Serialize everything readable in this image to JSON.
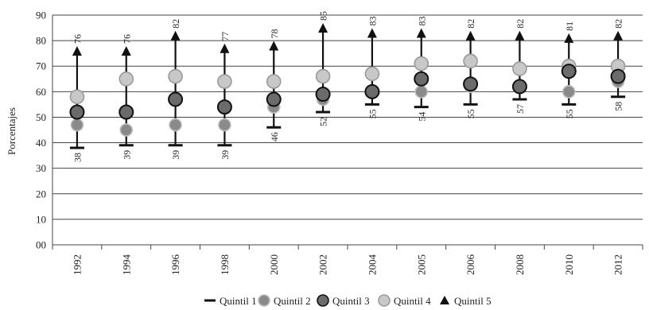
{
  "chart_data": {
    "type": "scatter",
    "title": "",
    "xlabel": "",
    "ylabel": "Porcentajes",
    "ylim": [
      0,
      90
    ],
    "yticks": [
      0,
      10,
      20,
      30,
      40,
      50,
      60,
      70,
      80,
      90
    ],
    "ytick_labels": [
      "00",
      "10",
      "20",
      "30",
      "40",
      "50",
      "60",
      "70",
      "80",
      "90"
    ],
    "grid": true,
    "legend_position": "bottom",
    "categories": [
      "1992",
      "1994",
      "1996",
      "1998",
      "2000",
      "2002",
      "2004",
      "2005",
      "2006",
      "2008",
      "2010",
      "2012"
    ],
    "series": [
      {
        "name": "Quintil 1",
        "marker": "dash",
        "color": "#111111",
        "values": [
          38,
          39,
          39,
          39,
          46,
          52,
          55,
          54,
          55,
          57,
          55,
          58
        ]
      },
      {
        "name": "Quintil 2",
        "marker": "circle",
        "color": "#8a8a8a",
        "values": [
          47,
          45,
          47,
          47,
          54,
          57,
          60,
          60,
          62,
          62,
          60,
          64
        ]
      },
      {
        "name": "Quintil 3",
        "marker": "circle",
        "color": "#6b6b6b",
        "values": [
          52,
          52,
          57,
          54,
          57,
          59,
          60,
          65,
          63,
          62,
          68,
          66
        ]
      },
      {
        "name": "Quintil 4",
        "marker": "circle",
        "color": "#c8c8c8",
        "values": [
          58,
          65,
          66,
          64,
          64,
          66,
          67,
          71,
          72,
          69,
          70,
          70
        ]
      },
      {
        "name": "Quintil 5",
        "marker": "triangle",
        "color": "#111111",
        "values": [
          76,
          76,
          82,
          77,
          78,
          85,
          83,
          83,
          82,
          82,
          81,
          82
        ]
      }
    ],
    "data_labels": {
      "low": {
        "series": "Quintil 1",
        "values": [
          "38",
          "39",
          "39",
          "39",
          "46",
          "52",
          "55",
          "54",
          "55",
          "57",
          "55",
          "58"
        ]
      },
      "high": {
        "series": "Quintil 5",
        "values": [
          "76",
          "76",
          "82",
          "77",
          "78",
          "85",
          "83",
          "83",
          "82",
          "82",
          "81",
          "82"
        ]
      }
    }
  }
}
